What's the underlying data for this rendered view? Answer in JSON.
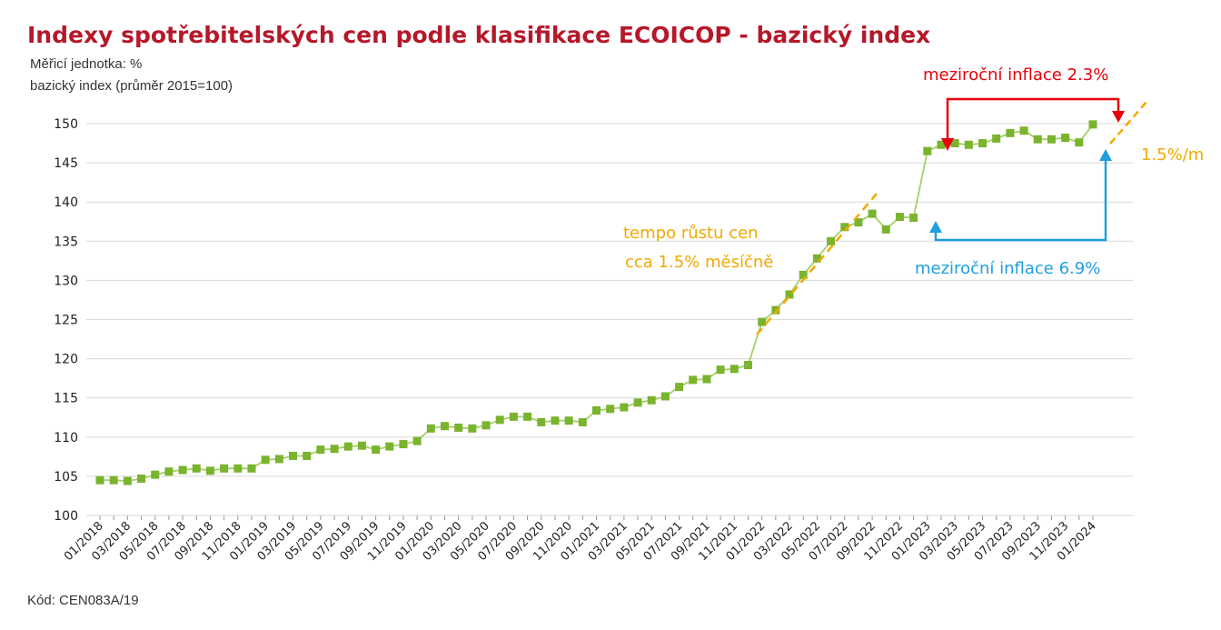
{
  "page": {
    "title": "Indexy spotřebitelských cen podle klasifikace ECOICOP - bazický index",
    "unit_label": "Měřicí jednotka: %",
    "subtitle": "bazický index (průměr 2015=100)",
    "code": "Kód: CEN083A/19"
  },
  "colors": {
    "title": "#b5182a",
    "series_line": "#a6cf68",
    "series_marker": "#7ab32e",
    "grid": "#d9d9d9",
    "annotation_orange": "#f2a900",
    "annotation_red": "#e8000b",
    "annotation_blue": "#1fa0de"
  },
  "chart_data": {
    "type": "line",
    "title": "Indexy spotřebitelských cen podle klasifikace ECOICOP - bazický index",
    "ylim": [
      100,
      150
    ],
    "yticks": [
      100,
      105,
      110,
      115,
      120,
      125,
      130,
      135,
      140,
      145,
      150
    ],
    "grid": true,
    "x": [
      "01/2018",
      "02/2018",
      "03/2018",
      "04/2018",
      "05/2018",
      "06/2018",
      "07/2018",
      "08/2018",
      "09/2018",
      "10/2018",
      "11/2018",
      "12/2018",
      "01/2019",
      "02/2019",
      "03/2019",
      "04/2019",
      "05/2019",
      "06/2019",
      "07/2019",
      "08/2019",
      "09/2019",
      "10/2019",
      "11/2019",
      "12/2019",
      "01/2020",
      "02/2020",
      "03/2020",
      "04/2020",
      "05/2020",
      "06/2020",
      "07/2020",
      "08/2020",
      "09/2020",
      "10/2020",
      "11/2020",
      "12/2020",
      "01/2021",
      "02/2021",
      "03/2021",
      "04/2021",
      "05/2021",
      "06/2021",
      "07/2021",
      "08/2021",
      "09/2021",
      "10/2021",
      "11/2021",
      "12/2021",
      "01/2022",
      "02/2022",
      "03/2022",
      "04/2022",
      "05/2022",
      "06/2022",
      "07/2022",
      "08/2022",
      "09/2022",
      "10/2022",
      "11/2022",
      "12/2022",
      "01/2023",
      "02/2023",
      "03/2023",
      "04/2023",
      "05/2023",
      "06/2023",
      "07/2023",
      "08/2023",
      "09/2023",
      "10/2023",
      "11/2023",
      "12/2023",
      "01/2024"
    ],
    "xtick_labels": [
      "01/2018",
      "03/2018",
      "05/2018",
      "07/2018",
      "09/2018",
      "11/2018",
      "01/2019",
      "03/2019",
      "05/2019",
      "07/2019",
      "09/2019",
      "11/2019",
      "01/2020",
      "03/2020",
      "05/2020",
      "07/2020",
      "09/2020",
      "11/2020",
      "01/2021",
      "03/2021",
      "05/2021",
      "07/2021",
      "09/2021",
      "11/2021",
      "01/2022",
      "03/2022",
      "05/2022",
      "07/2022",
      "09/2022",
      "11/2022",
      "01/2023",
      "03/2023",
      "05/2023",
      "07/2023",
      "09/2023",
      "11/2023",
      "01/2024"
    ],
    "values": [
      104.5,
      104.5,
      104.4,
      104.7,
      105.2,
      105.6,
      105.8,
      106.0,
      105.7,
      106.0,
      106.0,
      106.0,
      107.1,
      107.2,
      107.6,
      107.6,
      108.4,
      108.5,
      108.8,
      108.9,
      108.4,
      108.8,
      109.1,
      109.5,
      111.1,
      111.4,
      111.2,
      111.1,
      111.5,
      112.2,
      112.6,
      112.6,
      111.9,
      112.1,
      112.1,
      111.9,
      113.4,
      113.6,
      113.8,
      114.4,
      114.7,
      115.2,
      116.4,
      117.3,
      117.4,
      118.6,
      118.7,
      119.2,
      124.7,
      126.2,
      128.2,
      130.7,
      132.8,
      135.0,
      136.8,
      137.4,
      138.5,
      136.5,
      138.1,
      138.0,
      146.5,
      147.3,
      147.5,
      147.3,
      147.5,
      148.1,
      148.8,
      149.1,
      148.0,
      148.0,
      148.2,
      147.6,
      149.9
    ],
    "annotations": [
      {
        "text_line1": "tempo růstu cen",
        "text_line2": "cca 1.5% měsíčně",
        "color": "orange"
      },
      {
        "text": "meziroční inflace 2.3%",
        "color": "red"
      },
      {
        "text": "meziroční inflace 6.9%",
        "color": "blue"
      },
      {
        "text": "1.5%/m",
        "color": "orange"
      }
    ]
  }
}
